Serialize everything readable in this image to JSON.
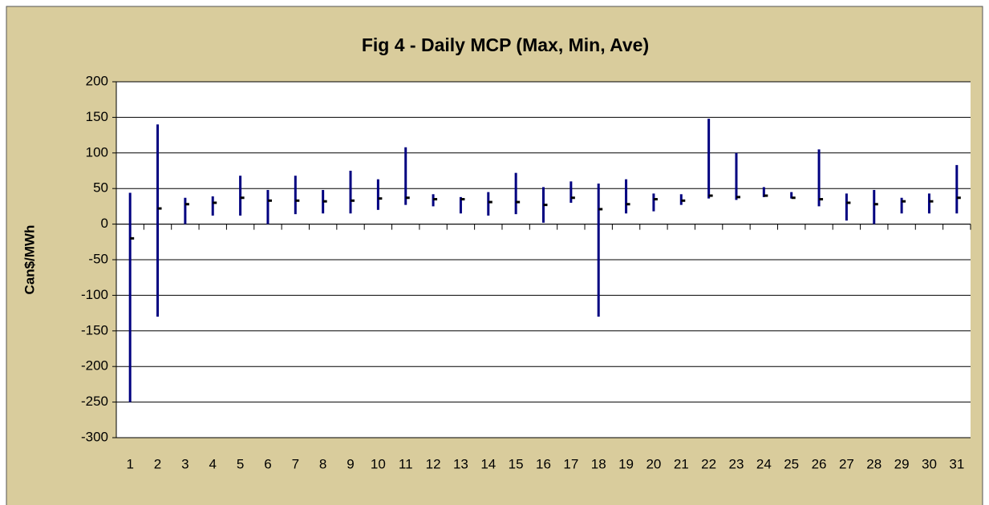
{
  "chart_data": {
    "type": "hilo",
    "title": "Fig 4 - Daily MCP (Max, Min, Ave)",
    "y_label": "Can$/MWh",
    "categories": [
      1,
      2,
      3,
      4,
      5,
      6,
      7,
      8,
      9,
      10,
      11,
      12,
      13,
      14,
      15,
      16,
      17,
      18,
      19,
      20,
      21,
      22,
      23,
      24,
      25,
      26,
      27,
      28,
      29,
      30,
      31
    ],
    "high": [
      44,
      140,
      37,
      39,
      68,
      48,
      68,
      48,
      75,
      63,
      108,
      42,
      38,
      45,
      72,
      52,
      60,
      57,
      63,
      43,
      42,
      148,
      100,
      52,
      45,
      105,
      43,
      48,
      37,
      43,
      83
    ],
    "low": [
      -250,
      -130,
      0,
      12,
      12,
      0,
      14,
      15,
      15,
      20,
      27,
      25,
      15,
      12,
      14,
      2,
      30,
      -130,
      15,
      18,
      27,
      36,
      34,
      38,
      36,
      25,
      5,
      0,
      15,
      15,
      15
    ],
    "average": [
      -20,
      22,
      28,
      30,
      37,
      33,
      33,
      32,
      33,
      36,
      37,
      35,
      35,
      31,
      31,
      27,
      37,
      21,
      28,
      35,
      33,
      40,
      38,
      40,
      37,
      35,
      30,
      28,
      32,
      32,
      37
    ],
    "color": "#000080",
    "average_color": "#000000",
    "ylim": [
      -300,
      200
    ],
    "yticks": [
      -300,
      -250,
      -200,
      -150,
      -100,
      -50,
      0,
      50,
      100,
      150,
      200
    ],
    "grid": true
  }
}
